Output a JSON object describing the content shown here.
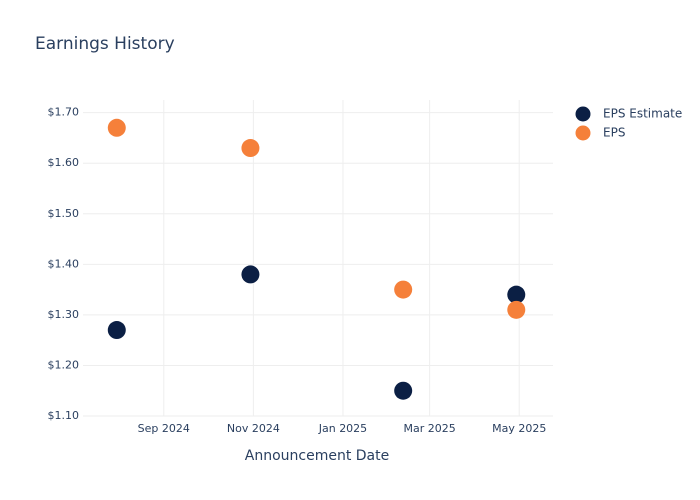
{
  "chart_data": {
    "type": "scatter",
    "title": "Earnings History",
    "x_label": "Announcement Date",
    "x": [
      "2024-07-31",
      "2024-10-30",
      "2025-02-11",
      "2025-04-29"
    ],
    "series": [
      {
        "name": "EPS Estimate",
        "color": "#0b1f44",
        "values": [
          1.27,
          1.38,
          1.15,
          1.34
        ]
      },
      {
        "name": "EPS",
        "color": "#f5803a",
        "values": [
          1.67,
          1.63,
          1.35,
          1.31
        ]
      }
    ],
    "xlim": [
      "2024-07-08",
      "2025-05-24"
    ],
    "xticks": [
      {
        "value": "2024-09-01",
        "label": "Sep 2024"
      },
      {
        "value": "2024-11-01",
        "label": "Nov 2024"
      },
      {
        "value": "2025-01-01",
        "label": "Jan 2025"
      },
      {
        "value": "2025-03-01",
        "label": "Mar 2025"
      },
      {
        "value": "2025-05-01",
        "label": "May 2025"
      }
    ],
    "ylim": [
      1.1,
      1.725
    ],
    "yticks": [
      {
        "value": 1.1,
        "label": "$1.10"
      },
      {
        "value": 1.2,
        "label": "$1.20"
      },
      {
        "value": 1.3,
        "label": "$1.30"
      },
      {
        "value": 1.4,
        "label": "$1.40"
      },
      {
        "value": 1.5,
        "label": "$1.50"
      },
      {
        "value": 1.6,
        "label": "$1.60"
      },
      {
        "value": 1.7,
        "label": "$1.70"
      }
    ],
    "grid": true,
    "legend": "right"
  }
}
